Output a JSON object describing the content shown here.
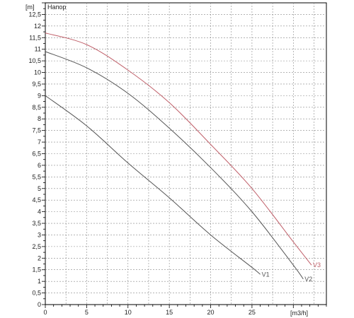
{
  "chart_data": {
    "type": "line",
    "title": "Напор",
    "xlabel": "[m3/h]",
    "ylabel": "[m]",
    "xlim": [
      0,
      34
    ],
    "ylim": [
      0,
      13
    ],
    "grid": true,
    "x_ticks": [
      {
        "v": 0,
        "label": "0"
      },
      {
        "v": 5,
        "label": "5"
      },
      {
        "v": 10,
        "label": "10"
      },
      {
        "v": 15,
        "label": "15"
      },
      {
        "v": 20,
        "label": "20"
      },
      {
        "v": 25,
        "label": "25"
      }
    ],
    "y_ticks": [
      {
        "v": 0,
        "label": "0"
      },
      {
        "v": 0.5,
        "label": "0,5"
      },
      {
        "v": 1,
        "label": "1"
      },
      {
        "v": 1.5,
        "label": "1,5"
      },
      {
        "v": 2,
        "label": "2"
      },
      {
        "v": 2.5,
        "label": "2,5"
      },
      {
        "v": 3,
        "label": "3"
      },
      {
        "v": 3.5,
        "label": "3,5"
      },
      {
        "v": 4,
        "label": "4"
      },
      {
        "v": 4.5,
        "label": "4,5"
      },
      {
        "v": 5,
        "label": "5"
      },
      {
        "v": 5.5,
        "label": "5,5"
      },
      {
        "v": 6,
        "label": "6"
      },
      {
        "v": 6.5,
        "label": "6,5"
      },
      {
        "v": 7,
        "label": "7"
      },
      {
        "v": 7.5,
        "label": "7,5"
      },
      {
        "v": 8,
        "label": "8"
      },
      {
        "v": 8.5,
        "label": "8,5"
      },
      {
        "v": 9,
        "label": "9"
      },
      {
        "v": 9.5,
        "label": "9,5"
      },
      {
        "v": 10,
        "label": "10"
      },
      {
        "v": 10.5,
        "label": "10,5"
      },
      {
        "v": 11,
        "label": "11"
      },
      {
        "v": 11.5,
        "label": "11,5"
      },
      {
        "v": 12,
        "label": "12"
      },
      {
        "v": 12.5,
        "label": "12,5"
      }
    ],
    "series": [
      {
        "name": "V1",
        "color": "#555555",
        "x": [
          0,
          5,
          10,
          15,
          20,
          25,
          26
        ],
        "y": [
          9,
          7.7,
          6.1,
          4.6,
          3.0,
          1.6,
          1.3
        ]
      },
      {
        "name": "V2",
        "color": "#555555",
        "x": [
          0,
          5,
          10,
          15,
          20,
          25,
          30,
          31.2
        ],
        "y": [
          10.9,
          10.2,
          9.1,
          7.6,
          5.9,
          4.0,
          1.7,
          1.1
        ]
      },
      {
        "name": "V3",
        "color": "#c0606a",
        "x": [
          0,
          5,
          10,
          15,
          20,
          25,
          30,
          32.2
        ],
        "y": [
          11.7,
          11.2,
          10.1,
          8.7,
          6.9,
          5.0,
          2.7,
          1.7
        ]
      }
    ]
  }
}
